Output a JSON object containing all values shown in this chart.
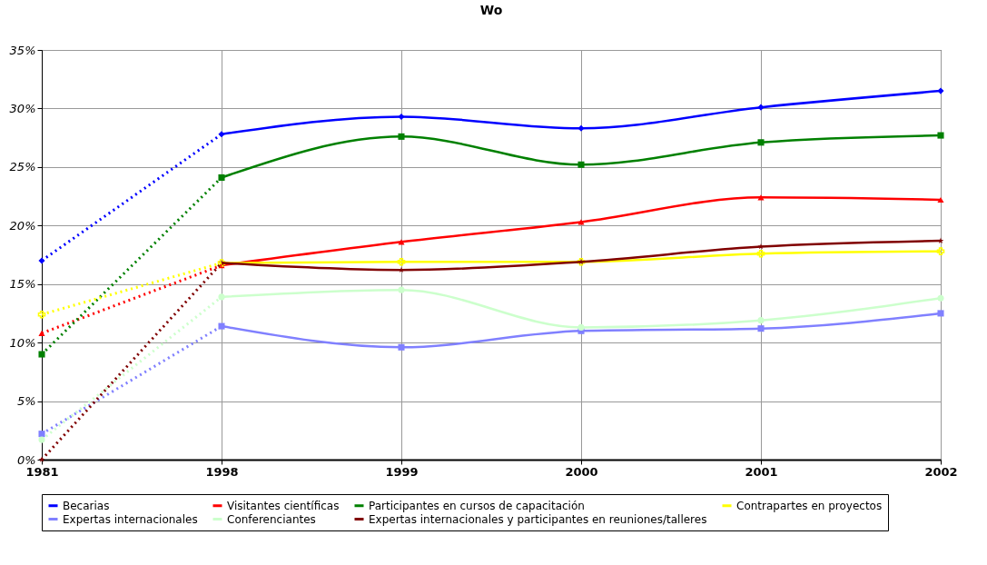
{
  "chart_data": {
    "type": "line",
    "title": "Wo",
    "categories": [
      "1981",
      "1998",
      "1999",
      "2000",
      "2001",
      "2002"
    ],
    "ylim": [
      0,
      35
    ],
    "yticks": [
      {
        "value": 0,
        "label": "0%"
      },
      {
        "value": 5,
        "label": "5%"
      },
      {
        "value": 10,
        "label": "10%"
      },
      {
        "value": 15,
        "label": "15%"
      },
      {
        "value": 20,
        "label": "20%"
      },
      {
        "value": 25,
        "label": "25%"
      },
      {
        "value": 30,
        "label": "30%"
      },
      {
        "value": 35,
        "label": "35%"
      }
    ],
    "grid": true,
    "legend": "bottom",
    "series": [
      {
        "name": "Becarias",
        "color": "#0000ff",
        "marker": "diamond",
        "line_style": "solid",
        "values": [
          null,
          27.8,
          29.3,
          28.3,
          30.1,
          31.5
        ]
      },
      {
        "name": "Visitantes científicas",
        "color": "#ff0000",
        "marker": "triangle",
        "line_style": "solid",
        "values": [
          null,
          16.6,
          18.6,
          20.3,
          22.4,
          22.2
        ]
      },
      {
        "name": "Participantes en cursos de capacitación",
        "color": "#008000",
        "marker": "square",
        "line_style": "solid",
        "values": [
          null,
          24.1,
          27.6,
          25.2,
          27.1,
          27.7
        ]
      },
      {
        "name": "Contrapartes en proyectos",
        "color": "#ffff00",
        "marker": "cross",
        "line_style": "solid",
        "values": [
          null,
          16.8,
          16.9,
          16.9,
          17.6,
          17.8
        ]
      },
      {
        "name": "Expertas internacionales",
        "color": "#8080ff",
        "marker": "square",
        "line_style": "solid",
        "values": [
          null,
          11.4,
          9.6,
          11.0,
          11.2,
          12.5
        ]
      },
      {
        "name": "Conferenciantes",
        "color": "#ccffcc",
        "marker": "circle",
        "line_style": "solid",
        "values": [
          null,
          13.9,
          14.5,
          11.3,
          11.9,
          13.8
        ]
      },
      {
        "name": "Expertas internacionales y participantes en reuniones/talleres",
        "color": "#800000",
        "marker": "star",
        "line_style": "solid",
        "values": [
          null,
          16.8,
          16.2,
          16.9,
          18.2,
          18.7
        ]
      },
      {
        "color": "#0000ff",
        "marker": "diamond",
        "line_style": "dotted",
        "values": [
          17.0,
          27.8,
          null,
          null,
          null,
          null
        ]
      },
      {
        "color": "#ff0000",
        "marker": "triangle",
        "line_style": "dotted",
        "values": [
          10.8,
          16.6,
          null,
          null,
          null,
          null
        ]
      },
      {
        "color": "#008000",
        "marker": "square",
        "line_style": "dotted",
        "values": [
          9.0,
          24.1,
          null,
          null,
          null,
          null
        ]
      },
      {
        "color": "#ffff00",
        "marker": "cross",
        "line_style": "dotted",
        "values": [
          12.4,
          16.8,
          null,
          null,
          null,
          null
        ]
      },
      {
        "color": "#8080ff",
        "marker": "square",
        "line_style": "dotted",
        "values": [
          2.2,
          11.4,
          null,
          null,
          null,
          null
        ]
      },
      {
        "color": "#ccffcc",
        "marker": "circle",
        "line_style": "dotted",
        "values": [
          1.7,
          13.9,
          null,
          null,
          null,
          null
        ]
      },
      {
        "color": "#800000",
        "marker": "star",
        "line_style": "dotted",
        "values": [
          0,
          16.8,
          null,
          null,
          null,
          null
        ]
      }
    ]
  }
}
